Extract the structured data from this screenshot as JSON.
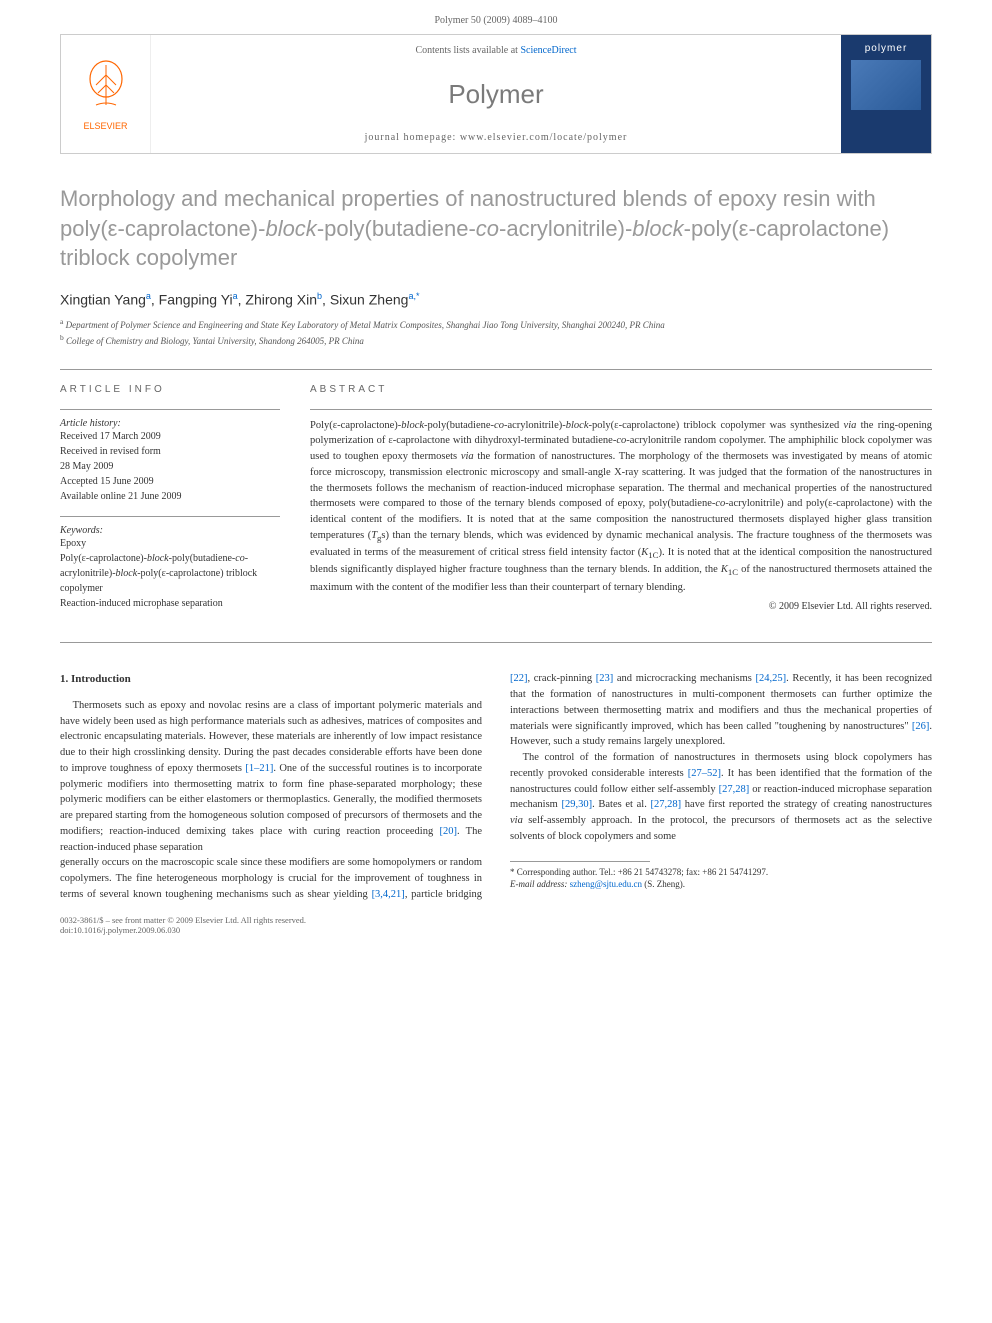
{
  "header": {
    "citation": "Polymer 50 (2009) 4089–4100"
  },
  "journalBox": {
    "elsevierLabel": "ELSEVIER",
    "contentsPrefix": "Contents lists available at ",
    "contentsLink": "ScienceDirect",
    "journalName": "Polymer",
    "homepageLabel": "journal homepage: www.elsevier.com/locate/polymer",
    "coverTitle": "polymer"
  },
  "title": "Morphology and mechanical properties of nanostructured blends of epoxy resin with poly(ε-caprolactone)-block-poly(butadiene-co-acrylonitrile)-block-poly(ε-caprolactone) triblock copolymer",
  "titleStyle": {
    "fontSize": 22,
    "color": "#999999",
    "fontStyleItalicWords": [
      "block",
      "co"
    ]
  },
  "authors": [
    {
      "name": "Xingtian Yang",
      "aff": "a"
    },
    {
      "name": "Fangping Yi",
      "aff": "a"
    },
    {
      "name": "Zhirong Xin",
      "aff": "b"
    },
    {
      "name": "Sixun Zheng",
      "aff": "a,*"
    }
  ],
  "affiliations": [
    {
      "sup": "a",
      "text": "Department of Polymer Science and Engineering and State Key Laboratory of Metal Matrix Composites, Shanghai Jiao Tong University, Shanghai 200240, PR China"
    },
    {
      "sup": "b",
      "text": "College of Chemistry and Biology, Yantai University, Shandong 264005, PR China"
    }
  ],
  "articleInfo": {
    "heading": "ARTICLE INFO",
    "historyLabel": "Article history:",
    "history": [
      "Received 17 March 2009",
      "Received in revised form",
      "28 May 2009",
      "Accepted 15 June 2009",
      "Available online 21 June 2009"
    ],
    "keywordsLabel": "Keywords:",
    "keywords": [
      "Epoxy",
      "Poly(ε-caprolactone)-block-poly(butadiene-co-acrylonitrile)-block-poly(ε-caprolactone) triblock copolymer",
      "Reaction-induced microphase separation"
    ]
  },
  "abstract": {
    "heading": "ABSTRACT",
    "text": "Poly(ε-caprolactone)-block-poly(butadiene-co-acrylonitrile)-block-poly(ε-caprolactone) triblock copolymer was synthesized via the ring-opening polymerization of ε-caprolactone with dihydroxyl-terminated butadiene-co-acrylonitrile random copolymer. The amphiphilic block copolymer was used to toughen epoxy thermosets via the formation of nanostructures. The morphology of the thermosets was investigated by means of atomic force microscopy, transmission electronic microscopy and small-angle X-ray scattering. It was judged that the formation of the nanostructures in the thermosets follows the mechanism of reaction-induced microphase separation. The thermal and mechanical properties of the nanostructured thermosets were compared to those of the ternary blends composed of epoxy, poly(butadiene-co-acrylonitrile) and poly(ε-caprolactone) with the identical content of the modifiers. It is noted that at the same composition the nanostructured thermosets displayed higher glass transition temperatures (Tgs) than the ternary blends, which was evidenced by dynamic mechanical analysis. The fracture toughness of the thermosets was evaluated in terms of the measurement of critical stress field intensity factor (K1C). It is noted that at the identical composition the nanostructured blends significantly displayed higher fracture toughness than the ternary blends. In addition, the K1C of the nanostructured thermosets attained the maximum with the content of the modifier less than their counterpart of ternary blending.",
    "copyright": "© 2009 Elsevier Ltd. All rights reserved."
  },
  "introduction": {
    "heading": "1. Introduction",
    "para1_a": "Thermosets such as epoxy and novolac resins are a class of important polymeric materials and have widely been used as high performance materials such as adhesives, matrices of composites and electronic encapsulating materials. However, these materials are inherently of low impact resistance due to their high crosslinking density. During the past decades considerable efforts have been done to improve toughness of epoxy thermosets ",
    "ref1": "[1–21]",
    "para1_b": ". One of the successful routines is to incorporate polymeric modifiers into thermosetting matrix to form fine phase-separated morphology; these polymeric modifiers can be either elastomers or thermoplastics. Generally, the modified thermosets are prepared starting from the homogeneous solution composed of precursors of thermosets and the modifiers; reaction-induced demixing takes place with curing reaction proceeding ",
    "ref2": "[20]",
    "para1_c": ". The reaction-induced phase separation ",
    "para2_a": "generally occurs on the macroscopic scale since these modifiers are some homopolymers or random copolymers. The fine heterogeneous morphology is crucial for the improvement of toughness in terms of several known toughening mechanisms such as shear yielding ",
    "ref3": "[3,4,21]",
    "para2_b": ", particle bridging ",
    "ref4": "[22]",
    "para2_c": ", crack-pinning ",
    "ref5": "[23]",
    "para2_d": " and microcracking mechanisms ",
    "ref6": "[24,25]",
    "para2_e": ". Recently, it has been recognized that the formation of nanostructures in multi-component thermosets can further optimize the interactions between thermosetting matrix and modifiers and thus the mechanical properties of materials were significantly improved, which has been called \"toughening by nanostructures\" ",
    "ref7": "[26]",
    "para2_f": ". However, such a study remains largely unexplored.",
    "para3_a": "The control of the formation of nanostructures in thermosets using block copolymers has recently provoked considerable interests ",
    "ref8": "[27–52]",
    "para3_b": ". It has been identified that the formation of the nanostructures could follow either self-assembly ",
    "ref9": "[27,28]",
    "para3_c": " or reaction-induced microphase separation mechanism ",
    "ref10": "[29,30]",
    "para3_d": ". Bates et al. ",
    "ref11": "[27,28]",
    "para3_e": " have first reported the strategy of creating nanostructures via self-assembly approach. In the protocol, the precursors of thermosets act as the selective solvents of block copolymers and some"
  },
  "footnotes": {
    "corresponding": "* Corresponding author. Tel.: +86 21 54743278; fax: +86 21 54741297.",
    "email_label": "E-mail address: ",
    "email": "szheng@sjtu.edu.cn",
    "email_suffix": " (S. Zheng)."
  },
  "footer": {
    "line1": "0032-3861/$ – see front matter © 2009 Elsevier Ltd. All rights reserved.",
    "line2": "doi:10.1016/j.polymer.2009.06.030"
  },
  "colors": {
    "titleGray": "#999999",
    "linkBlue": "#0066cc",
    "elsevierOrange": "#ff6600",
    "coverBlue": "#1a3a6e",
    "textDark": "#333333",
    "textMuted": "#666666",
    "borderGray": "#cccccc"
  }
}
